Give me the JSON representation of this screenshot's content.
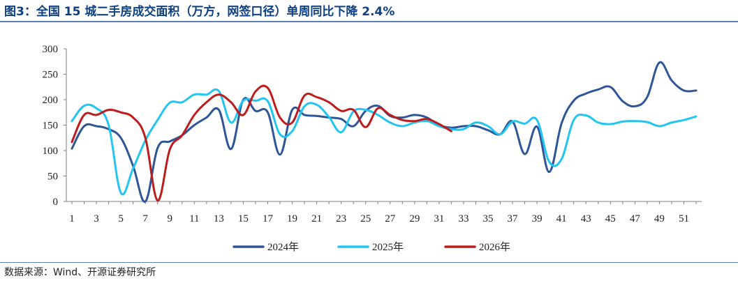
{
  "title": "图3：全国 15 城二手房成交面积（万方，网签口径）单周同比下降 2.4%",
  "source": "数据来源：Wind、开源证券研究所",
  "chart_data": {
    "type": "line",
    "title": "图3：全国 15 城二手房成交面积（万方，网签口径）单周同比下降 2.4%",
    "xlabel": "",
    "ylabel": "",
    "ylim": [
      0,
      300
    ],
    "yticks": [
      0,
      50,
      100,
      150,
      200,
      250,
      300
    ],
    "xlim": [
      1,
      52
    ],
    "xticks": [
      1,
      3,
      5,
      7,
      9,
      11,
      13,
      15,
      17,
      19,
      21,
      23,
      25,
      27,
      29,
      31,
      33,
      35,
      37,
      39,
      41,
      43,
      45,
      47,
      49,
      51
    ],
    "grid": false,
    "legend_position": "bottom",
    "series": [
      {
        "name": "2024年",
        "color": "#2e5597",
        "x": [
          1,
          2,
          3,
          4,
          5,
          6,
          7,
          8,
          9,
          10,
          11,
          12,
          13,
          14,
          15,
          16,
          17,
          18,
          19,
          20,
          21,
          22,
          23,
          24,
          25,
          26,
          27,
          28,
          29,
          30,
          31,
          32,
          33,
          34,
          35,
          36,
          37,
          38,
          39,
          40,
          41,
          42,
          43,
          44,
          45,
          46,
          47,
          48,
          49,
          50,
          51,
          52
        ],
        "values": [
          104,
          148,
          148,
          142,
          125,
          70,
          0,
          105,
          118,
          130,
          150,
          165,
          180,
          103,
          200,
          178,
          175,
          92,
          180,
          170,
          168,
          165,
          162,
          148,
          178,
          188,
          168,
          165,
          170,
          165,
          150,
          145,
          148,
          148,
          140,
          132,
          157,
          93,
          147,
          58,
          153,
          198,
          212,
          220,
          225,
          197,
          187,
          205,
          273,
          238,
          218,
          218
        ]
      },
      {
        "name": "2025年",
        "color": "#22c5f0",
        "x": [
          1,
          2,
          3,
          4,
          5,
          6,
          7,
          8,
          9,
          10,
          11,
          12,
          13,
          14,
          15,
          16,
          17,
          18,
          19,
          20,
          21,
          22,
          23,
          24,
          25,
          26,
          27,
          28,
          29,
          30,
          31,
          32,
          33,
          34,
          35,
          36,
          37,
          38,
          39,
          40,
          41,
          42,
          43,
          44,
          45,
          46,
          47,
          48,
          49,
          50,
          51,
          52
        ],
        "values": [
          158,
          188,
          183,
          150,
          17,
          65,
          120,
          160,
          194,
          195,
          210,
          210,
          217,
          155,
          198,
          198,
          197,
          132,
          138,
          187,
          190,
          166,
          136,
          177,
          180,
          170,
          155,
          148,
          155,
          158,
          148,
          142,
          142,
          155,
          148,
          132,
          157,
          153,
          160,
          78,
          83,
          160,
          169,
          155,
          152,
          157,
          158,
          156,
          148,
          155,
          160,
          167
        ]
      },
      {
        "name": "2026年",
        "color": "#bd1c1c",
        "x": [
          1,
          2,
          3,
          4,
          5,
          6,
          7,
          8,
          9,
          10,
          11,
          12,
          13,
          14,
          15,
          16,
          17,
          18,
          19,
          20,
          21,
          22,
          23,
          24,
          25,
          26,
          27,
          28,
          29,
          30,
          31,
          32
        ],
        "values": [
          117,
          170,
          170,
          180,
          175,
          165,
          125,
          2,
          102,
          130,
          170,
          195,
          210,
          195,
          170,
          216,
          223,
          165,
          155,
          208,
          205,
          195,
          178,
          180,
          146,
          183,
          170,
          160,
          158,
          162,
          152,
          138
        ]
      }
    ]
  }
}
